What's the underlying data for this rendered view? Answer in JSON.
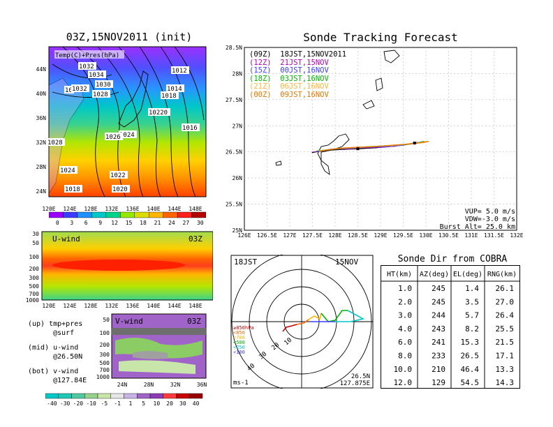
{
  "left_top": {
    "title": "03Z,15NOV2011 (init)",
    "label": "Temp(C)+Pres(hPa)",
    "isobars": [
      "1032",
      "1034",
      "1030",
      "1028",
      "10",
      "1032",
      "1012",
      "1018",
      "1014",
      "10220",
      "1024",
      "1016",
      "1026",
      "1028",
      "1024",
      "1022",
      "1020",
      "1018"
    ],
    "lat_labels": [
      "44N",
      "40N",
      "36N",
      "32N",
      "28N",
      "24N"
    ],
    "lon_labels": [
      "120E",
      "124E",
      "128E",
      "132E",
      "136E",
      "140E",
      "144E",
      "148E"
    ],
    "colorbar_labels": [
      "0",
      "3",
      "6",
      "9",
      "12",
      "15",
      "18",
      "21",
      "24",
      "27",
      "30"
    ],
    "colorbar_colors": [
      "#9b00ff",
      "#3c3cff",
      "#1e90ff",
      "#00c8c8",
      "#00d28c",
      "#96e600",
      "#dcdc00",
      "#ffb400",
      "#ff6400",
      "#ff1e1e",
      "#b40000"
    ]
  },
  "left_mid": {
    "title": "U-wind",
    "time": "03Z",
    "y_labels": [
      "30",
      "50",
      "100",
      "200",
      "300",
      "500",
      "700",
      "1000"
    ],
    "lon_labels": [
      "120E",
      "124E",
      "128E",
      "132E",
      "136E",
      "140E",
      "144E",
      "148E"
    ]
  },
  "left_bot": {
    "title": "V-wind",
    "time": "03Z",
    "y_labels": [
      "50",
      "100",
      "200",
      "300",
      "500",
      "700",
      "1000"
    ],
    "lat_labels": [
      "24N",
      "28N",
      "32N",
      "36N"
    ],
    "colorbar_labels": [
      "-40",
      "-30",
      "-20",
      "-10",
      "-5",
      "-1",
      "1",
      "5",
      "10",
      "20",
      "30",
      "40"
    ],
    "colorbar_colors": [
      "#00c8c8",
      "#1ec8b4",
      "#50c8a0",
      "#96d28c",
      "#c8e6aa",
      "#e6e6e6",
      "#c8b4e6",
      "#a064c8",
      "#8c3cb4",
      "#ff3c3c",
      "#c80000",
      "#960000"
    ]
  },
  "legend_text": {
    "up": "(up) tmp+pres",
    "up_sub": "@surf",
    "mid": "(mid) u-wind",
    "mid_sub": "@26.50N",
    "bot": "(bot) v-wind",
    "bot_sub": "@127.84E"
  },
  "tracking": {
    "title": "Sonde Tracking Forecast",
    "legend": [
      {
        "text": "(09Z)  18JST,15NOV2011",
        "color": "#000000"
      },
      {
        "text": "(12Z)  21JST,15NOV",
        "color": "#b400b4"
      },
      {
        "text": "(15Z)  00JST,16NOV",
        "color": "#3c3cff"
      },
      {
        "text": "(18Z)  03JST,16NOV",
        "color": "#00b400"
      },
      {
        "text": "(21Z)  06JST,16NOV",
        "color": "#ffb43c"
      },
      {
        "text": "(00Z)  09JST,16NOV",
        "color": "#e67800"
      }
    ],
    "params": [
      "VUP= 5.0 m/s",
      "VDW=-3.0 m/s",
      "Burst Alt= 25.0 km"
    ]
  },
  "chart_data": [
    {
      "type": "line",
      "title": "Sonde Tracking Forecast",
      "xlabel": "",
      "ylabel": "",
      "xlim": [
        126,
        132
      ],
      "ylim": [
        25,
        28.5
      ],
      "x_ticks": [
        "126E",
        "126.5E",
        "127E",
        "127.5E",
        "128E",
        "128.5E",
        "129E",
        "129.5E",
        "130E",
        "130.5E",
        "131E",
        "131.5E",
        "132E"
      ],
      "y_ticks": [
        "25N",
        "25.5N",
        "26N",
        "26.5N",
        "27N",
        "27.5N",
        "28N",
        "28.5N"
      ],
      "series": [
        {
          "name": "(09Z) 18JST,15NOV2011",
          "color": "#000000",
          "x": [
            127.5,
            127.8,
            128.2,
            128.5,
            128.9,
            129.3,
            129.6,
            129.75
          ],
          "y": [
            26.49,
            26.53,
            26.55,
            26.56,
            26.58,
            26.61,
            26.65,
            26.67
          ]
        },
        {
          "name": "(12Z) 21JST,15NOV",
          "color": "#b400b4",
          "x": [
            127.55,
            127.9,
            128.3,
            128.6,
            129.0,
            129.4,
            129.7,
            129.8
          ],
          "y": [
            26.5,
            26.55,
            26.56,
            26.58,
            26.59,
            26.62,
            26.66,
            26.68
          ]
        },
        {
          "name": "(15Z) 00JST,16NOV",
          "color": "#3c3cff",
          "x": [
            127.6,
            128.0,
            128.35,
            128.7,
            129.1,
            129.5,
            129.8,
            129.9
          ],
          "y": [
            26.51,
            26.56,
            26.57,
            26.59,
            26.6,
            26.63,
            26.67,
            26.69
          ]
        },
        {
          "name": "(18Z) 03JST,16NOV",
          "color": "#00b400",
          "x": [
            127.62,
            128.05,
            128.4,
            128.75,
            129.2,
            129.55,
            129.85,
            129.95
          ],
          "y": [
            26.52,
            26.56,
            26.58,
            26.6,
            26.62,
            26.64,
            26.68,
            26.7
          ]
        },
        {
          "name": "(21Z) 06JST,16NOV",
          "color": "#ffb43c",
          "x": [
            127.65,
            128.1,
            128.45,
            128.8,
            129.25,
            129.6,
            129.9,
            130.0
          ],
          "y": [
            26.52,
            26.57,
            26.58,
            26.6,
            26.62,
            26.65,
            26.68,
            26.7
          ]
        },
        {
          "name": "(00Z) 09JST,16NOV",
          "color": "#e67800",
          "x": [
            127.7,
            128.1,
            128.5,
            128.85,
            129.3,
            129.65,
            129.95,
            130.05
          ],
          "y": [
            26.52,
            26.57,
            26.59,
            26.6,
            26.63,
            26.65,
            26.68,
            26.7
          ]
        }
      ]
    },
    {
      "type": "table",
      "title": "Sonde Dir from COBRA",
      "columns": [
        "HT(km)",
        "AZ(deg)",
        "EL(deg)",
        "RNG(km)"
      ],
      "rows": [
        [
          "1.0",
          "245",
          "1.4",
          "26.1"
        ],
        [
          "2.0",
          "245",
          "3.5",
          "27.0"
        ],
        [
          "3.0",
          "244",
          "5.7",
          "26.4"
        ],
        [
          "4.0",
          "243",
          "8.2",
          "25.5"
        ],
        [
          "6.0",
          "241",
          "15.3",
          "21.5"
        ],
        [
          "8.0",
          "233",
          "26.5",
          "17.1"
        ],
        [
          "10.0",
          "210",
          "46.4",
          "13.3"
        ],
        [
          "12.0",
          "129",
          "54.5",
          "14.3"
        ]
      ]
    }
  ],
  "hodograph": {
    "time_left": "18JST",
    "time_right": "15NOV",
    "ring_labels": [
      "10",
      "20",
      "30",
      "40"
    ],
    "pressure_legend": [
      {
        "text": "≥850hPa",
        "color": "#c80000"
      },
      {
        "text": "<850",
        "color": "#ff6400"
      },
      {
        "text": "<700",
        "color": "#ffb400"
      },
      {
        "text": "<500",
        "color": "#00b400"
      },
      {
        "text": "<250",
        "color": "#00c8c8"
      },
      {
        "text": "<100",
        "color": "#3c3cff"
      }
    ],
    "unit": "ms-1",
    "loc_lat": "26.5N",
    "loc_lon": "127.875E"
  }
}
